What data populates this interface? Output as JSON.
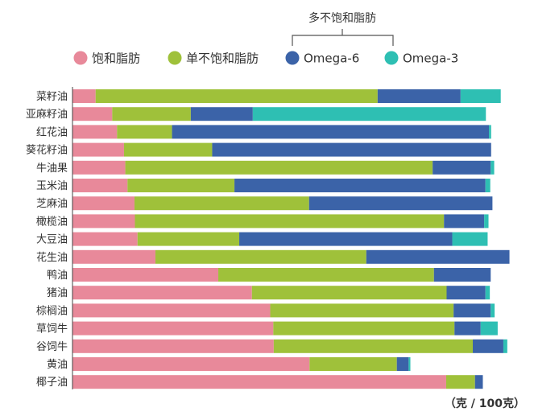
{
  "chart_data": {
    "type": "bar",
    "orientation": "horizontal",
    "stacked": true,
    "unit": "（克 / 100克）",
    "legend_group_label": "多不饱和脂肪",
    "legend_position": "top",
    "xlim": [
      0,
      100
    ],
    "grid": false,
    "categories": [
      "菜籽油",
      "亚麻籽油",
      "红花油",
      "葵花籽油",
      "牛油果",
      "玉米油",
      "芝麻油",
      "橄榄油",
      "大豆油",
      "花生油",
      "鸭油",
      "猪油",
      "棕榈油",
      "草饲牛",
      "谷饲牛",
      "黄油",
      "椰子油"
    ],
    "series": [
      {
        "name": "饱和脂肪",
        "color": "#e8899a",
        "values": [
          5.3,
          9.1,
          10.2,
          11.8,
          12.1,
          12.6,
          14.2,
          14.3,
          14.9,
          19.0,
          33.4,
          41.1,
          45.3,
          46.0,
          46.1,
          54.3,
          85.6
        ]
      },
      {
        "name": "单不饱和脂肪",
        "color": "#9fc13a",
        "values": [
          64.6,
          18.0,
          12.6,
          20.2,
          70.4,
          24.5,
          40.0,
          70.8,
          23.3,
          48.3,
          49.4,
          44.6,
          42.0,
          41.5,
          45.6,
          20.0,
          6.6
        ]
      },
      {
        "name": "Omega-6",
        "color": "#3b63a8",
        "values": [
          19.0,
          14.2,
          72.6,
          63.9,
          13.3,
          57.5,
          42.0,
          9.2,
          48.8,
          32.8,
          13.0,
          8.9,
          8.5,
          6.0,
          7.0,
          2.7,
          1.8
        ]
      },
      {
        "name": "Omega-3",
        "color": "#2ebfb3",
        "values": [
          9.2,
          53.4,
          0.5,
          0.0,
          0.8,
          1.1,
          0.0,
          1.0,
          8.1,
          0.0,
          0.0,
          1.0,
          0.9,
          3.9,
          0.9,
          0.4,
          0.0
        ]
      }
    ]
  }
}
